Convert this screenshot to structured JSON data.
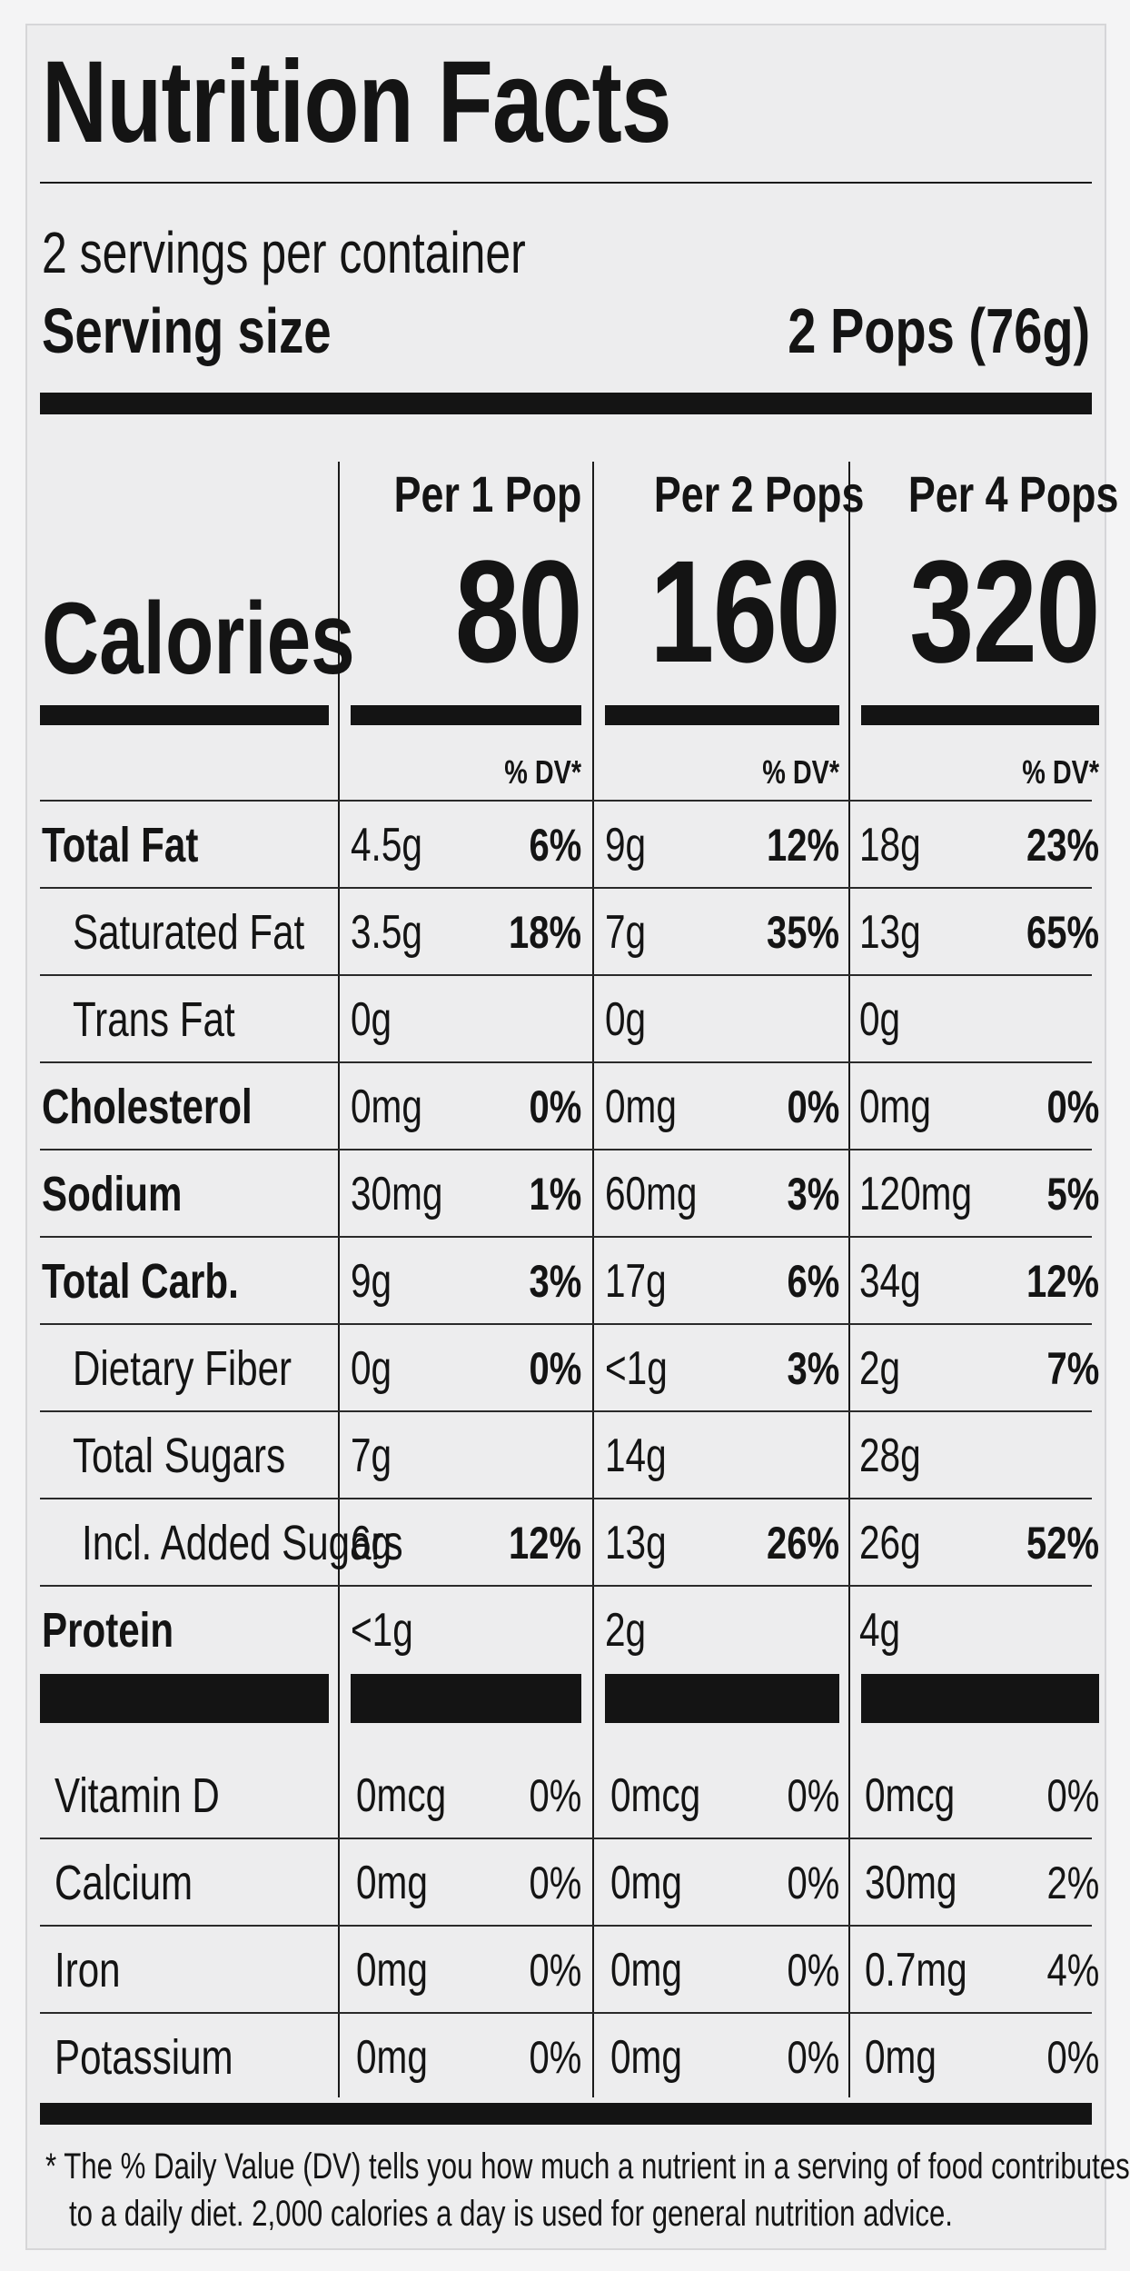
{
  "label": {
    "title": "Nutrition Facts",
    "servings_per_container": "2 servings per container",
    "serving_size_label": "Serving size",
    "serving_size_value": "2 Pops (76g)",
    "calories_label": "Calories",
    "dv_header": "% DV*",
    "columns": [
      {
        "header": "Per 1 Pop",
        "calories": "80"
      },
      {
        "header": "Per 2 Pops",
        "calories": "160"
      },
      {
        "header": "Per 4 Pops",
        "calories": "320"
      }
    ],
    "nutrients": [
      {
        "name": "Total Fat",
        "bold": true,
        "indent": 0,
        "values": [
          [
            "4.5g",
            "6%"
          ],
          [
            "9g",
            "12%"
          ],
          [
            "18g",
            "23%"
          ]
        ]
      },
      {
        "name": "Saturated Fat",
        "bold": false,
        "indent": 1,
        "values": [
          [
            "3.5g",
            "18%"
          ],
          [
            "7g",
            "35%"
          ],
          [
            "13g",
            "65%"
          ]
        ]
      },
      {
        "name": "Trans Fat",
        "bold": false,
        "indent": 1,
        "values": [
          [
            "0g",
            ""
          ],
          [
            "0g",
            ""
          ],
          [
            "0g",
            ""
          ]
        ]
      },
      {
        "name": "Cholesterol",
        "bold": true,
        "indent": 0,
        "values": [
          [
            "0mg",
            "0%"
          ],
          [
            "0mg",
            "0%"
          ],
          [
            "0mg",
            "0%"
          ]
        ]
      },
      {
        "name": "Sodium",
        "bold": true,
        "indent": 0,
        "values": [
          [
            "30mg",
            "1%"
          ],
          [
            "60mg",
            "3%"
          ],
          [
            "120mg",
            "5%"
          ]
        ]
      },
      {
        "name": "Total Carb.",
        "bold": true,
        "indent": 0,
        "values": [
          [
            "9g",
            "3%"
          ],
          [
            "17g",
            "6%"
          ],
          [
            "34g",
            "12%"
          ]
        ]
      },
      {
        "name": "Dietary Fiber",
        "bold": false,
        "indent": 1,
        "values": [
          [
            "0g",
            "0%"
          ],
          [
            "<1g",
            "3%"
          ],
          [
            "2g",
            "7%"
          ]
        ]
      },
      {
        "name": "Total Sugars",
        "bold": false,
        "indent": 1,
        "values": [
          [
            "7g",
            ""
          ],
          [
            "14g",
            ""
          ],
          [
            "28g",
            ""
          ]
        ]
      },
      {
        "name": "Incl. Added Sugars",
        "bold": false,
        "indent": 2,
        "values": [
          [
            "6g",
            "12%"
          ],
          [
            "13g",
            "26%"
          ],
          [
            "26g",
            "52%"
          ]
        ]
      },
      {
        "name": "Protein",
        "bold": true,
        "indent": 0,
        "values": [
          [
            "<1g",
            ""
          ],
          [
            "2g",
            ""
          ],
          [
            "4g",
            ""
          ]
        ]
      }
    ],
    "vitamins": [
      {
        "name": "Vitamin D",
        "values": [
          [
            "0mcg",
            "0%"
          ],
          [
            "0mcg",
            "0%"
          ],
          [
            "0mcg",
            "0%"
          ]
        ]
      },
      {
        "name": "Calcium",
        "values": [
          [
            "0mg",
            "0%"
          ],
          [
            "0mg",
            "0%"
          ],
          [
            "30mg",
            "2%"
          ]
        ]
      },
      {
        "name": "Iron",
        "values": [
          [
            "0mg",
            "0%"
          ],
          [
            "0mg",
            "0%"
          ],
          [
            "0.7mg",
            "4%"
          ]
        ]
      },
      {
        "name": "Potassium",
        "values": [
          [
            "0mg",
            "0%"
          ],
          [
            "0mg",
            "0%"
          ],
          [
            "0mg",
            "0%"
          ]
        ]
      }
    ],
    "footnote_line1": "* The % Daily Value (DV) tells you how much a nutrient in a serving of food contributes",
    "footnote_line2": "to a daily diet. 2,000 calories a day is used for general nutrition advice."
  }
}
